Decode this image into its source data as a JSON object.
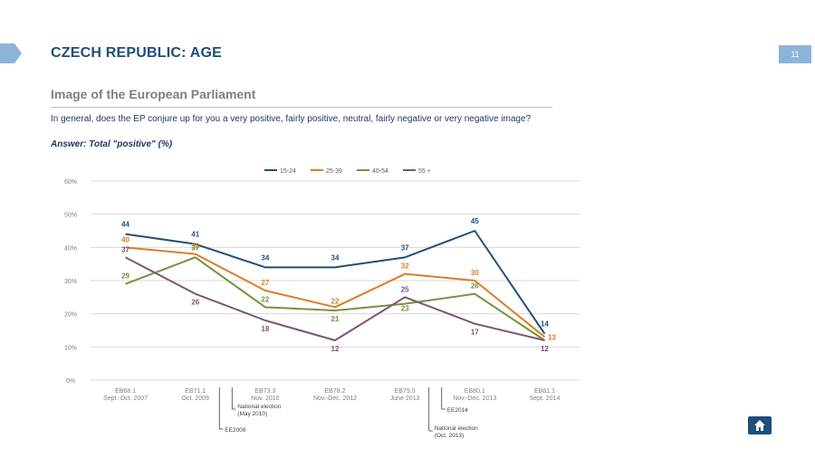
{
  "page": {
    "number": "11",
    "title": "CZECH REPUBLIC: AGE",
    "subtitle": "Image of the European Parliament",
    "question": "In general, does the EP conjure up for you a very positive, fairly positive, neutral, fairly negative or very negative image?",
    "answer": "Answer: Total \"positive\" (%)"
  },
  "icons": {
    "home": "home-icon",
    "left_tab": "arrow-tab-icon"
  },
  "chart_data": {
    "type": "line",
    "categories": [
      [
        "EB68.1",
        "Sept.-Oct. 2007"
      ],
      [
        "EB71.1",
        "Oct. 2009"
      ],
      [
        "EB73.3",
        "Nov. 2010"
      ],
      [
        "EB78.2",
        "Nov.-Dec. 2012"
      ],
      [
        "EB79.5",
        "June 2013"
      ],
      [
        "EB80.1",
        "Nov.-Dec. 2013"
      ],
      [
        "EB81.1",
        "Sept. 2014"
      ]
    ],
    "y_ticks": [
      "0%",
      "10%",
      "20%",
      "30%",
      "40%",
      "50%",
      "60%"
    ],
    "ylim": [
      0,
      60
    ],
    "grid": true,
    "legend_position": "top",
    "series": [
      {
        "name": "15-24",
        "color": "#1f4e79",
        "values": [
          44,
          41,
          34,
          34,
          37,
          45,
          14
        ]
      },
      {
        "name": "25-39",
        "color": "#e07b26",
        "values": [
          40,
          38,
          27,
          22,
          32,
          30,
          13
        ]
      },
      {
        "name": "40-54",
        "color": "#76923c",
        "values": [
          29,
          37,
          22,
          21,
          23,
          26,
          12
        ]
      },
      {
        "name": "55 +",
        "color": "#7b5573",
        "values": [
          37,
          26,
          18,
          12,
          25,
          17,
          12
        ]
      }
    ],
    "annotations": [
      {
        "after_category": 1,
        "lines": [
          "EE2009"
        ]
      },
      {
        "after_category": 1,
        "lines": [
          "National election",
          "(May 2010)"
        ]
      },
      {
        "after_category": 4,
        "lines": [
          "National election",
          "(Oct. 2013)"
        ]
      },
      {
        "after_category": 4,
        "lines": [
          "EE2014"
        ]
      }
    ]
  }
}
